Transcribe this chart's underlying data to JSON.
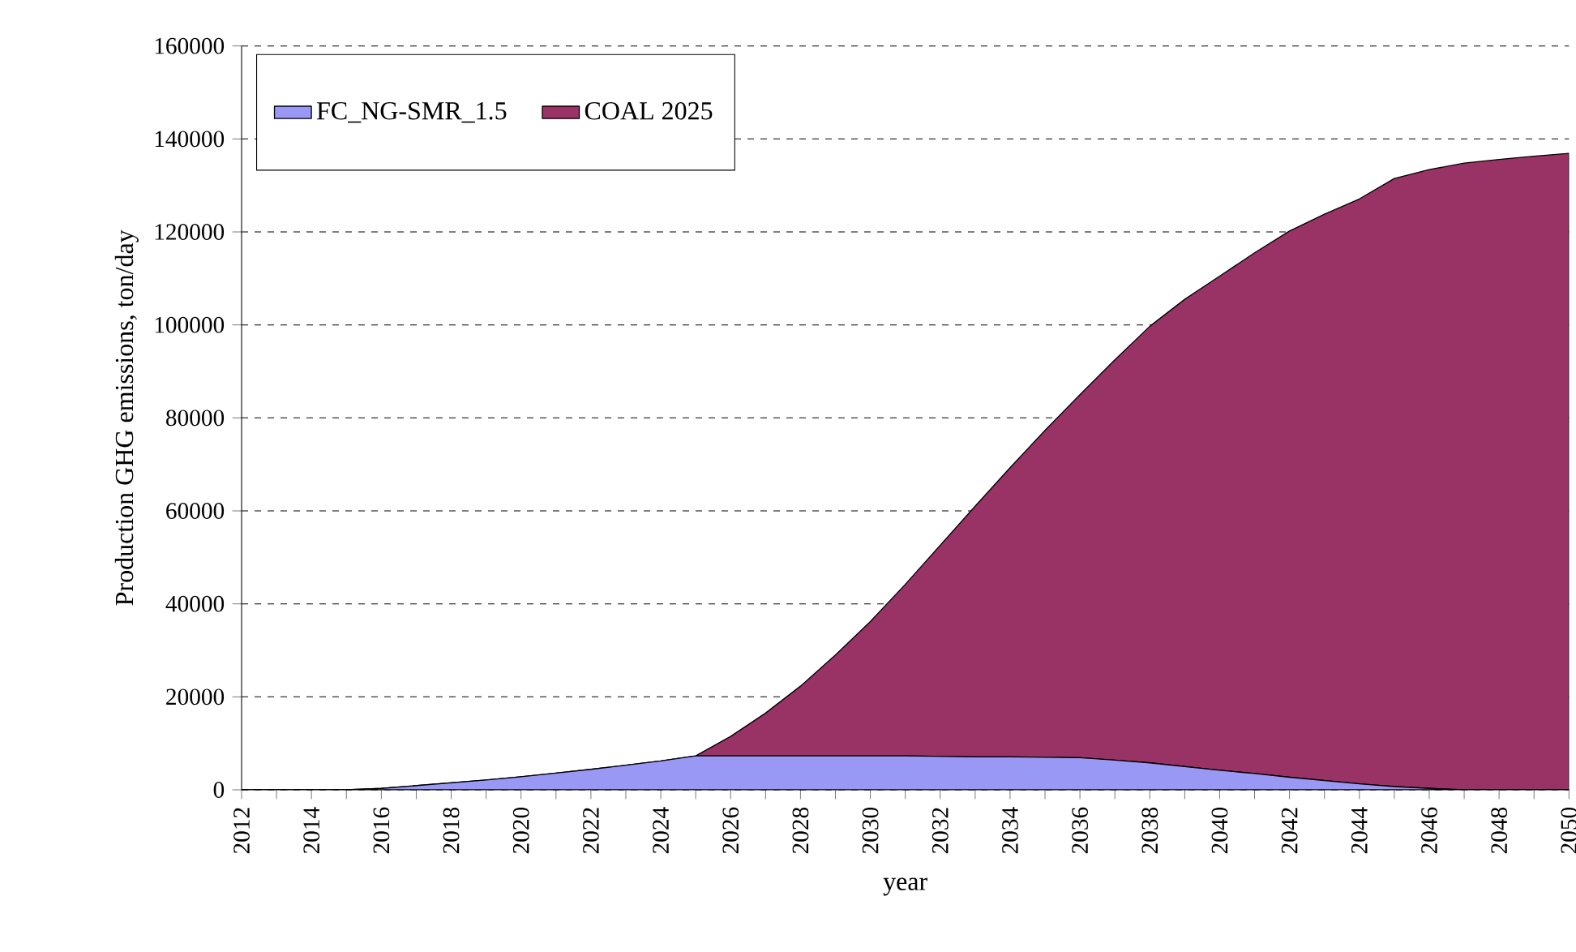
{
  "chart_data": {
    "type": "area",
    "stacked": true,
    "xlabel": "year",
    "ylabel": "Production GHG emissions, ton/day",
    "x": [
      2012,
      2013,
      2014,
      2015,
      2016,
      2017,
      2018,
      2019,
      2020,
      2021,
      2022,
      2023,
      2024,
      2025,
      2026,
      2027,
      2028,
      2029,
      2030,
      2031,
      2032,
      2033,
      2034,
      2035,
      2036,
      2037,
      2038,
      2039,
      2040,
      2041,
      2042,
      2043,
      2044,
      2045,
      2046,
      2047,
      2048,
      2049,
      2050
    ],
    "series": [
      {
        "name": "FC_NG-SMR_1.5",
        "color": "#9999f5",
        "values": [
          0,
          0,
          0,
          0,
          300,
          900,
          1500,
          2100,
          2800,
          3600,
          4400,
          5300,
          6200,
          7300,
          7300,
          7300,
          7300,
          7300,
          7300,
          7300,
          7200,
          7100,
          7100,
          7000,
          6900,
          6400,
          5800,
          5000,
          4200,
          3500,
          2700,
          2000,
          1300,
          700,
          300,
          0,
          0,
          0,
          0
        ]
      },
      {
        "name": "COAL 2025",
        "color": "#993366",
        "values": [
          0,
          0,
          0,
          0,
          0,
          0,
          0,
          0,
          0,
          0,
          0,
          0,
          0,
          0,
          4200,
          9200,
          15000,
          21700,
          28900,
          36900,
          45400,
          53900,
          62200,
          70300,
          78100,
          86100,
          93900,
          100500,
          106300,
          112000,
          117500,
          121800,
          125800,
          130800,
          133100,
          134800,
          135600,
          136300,
          136900
        ]
      }
    ],
    "xlim": [
      2012,
      2050
    ],
    "xticks": [
      2012,
      {
        "value": 2013,
        "label": null
      },
      2014,
      {
        "value": 2015,
        "label": null
      },
      2016,
      {
        "value": 2017,
        "label": null
      },
      2018,
      {
        "value": 2019,
        "label": null
      },
      2020,
      {
        "value": 2021,
        "label": null
      },
      2022,
      {
        "value": 2023,
        "label": null
      },
      2024,
      {
        "value": 2025,
        "label": null
      },
      2026,
      {
        "value": 2027,
        "label": null
      },
      2028,
      {
        "value": 2029,
        "label": null
      },
      2030,
      {
        "value": 2031,
        "label": null
      },
      2032,
      {
        "value": 2033,
        "label": null
      },
      2034,
      {
        "value": 2035,
        "label": null
      },
      2036,
      {
        "value": 2037,
        "label": null
      },
      2038,
      {
        "value": 2039,
        "label": null
      },
      2040,
      {
        "value": 2041,
        "label": null
      },
      2042,
      {
        "value": 2043,
        "label": null
      },
      2044,
      {
        "value": 2045,
        "label": null
      },
      2046,
      {
        "value": 2047,
        "label": null
      },
      2048,
      {
        "value": 2049,
        "label": null
      },
      2050
    ],
    "ylim": [
      0,
      160000
    ],
    "yticks": [
      0,
      20000,
      40000,
      60000,
      80000,
      100000,
      120000,
      140000,
      160000
    ],
    "grid": "y",
    "legend": "top left"
  }
}
